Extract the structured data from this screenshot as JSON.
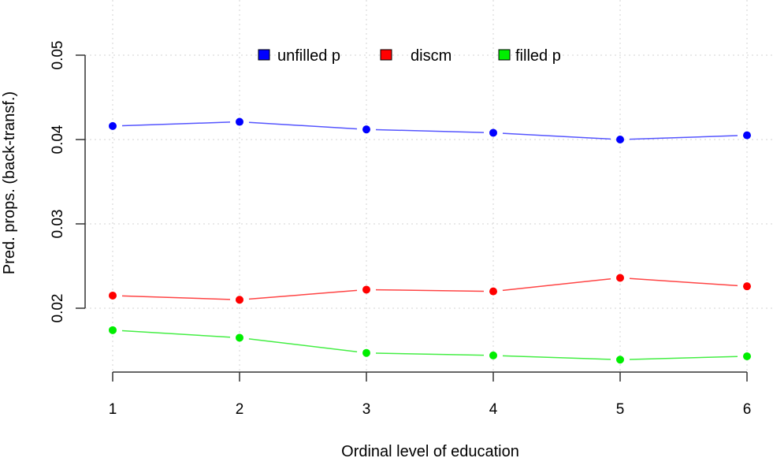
{
  "chart_data": {
    "type": "line",
    "title": "",
    "xlabel": "Ordinal level of education",
    "ylabel": "Pred. props. (back-transf.)",
    "x": [
      1,
      2,
      3,
      4,
      5,
      6
    ],
    "xticks": [
      "1",
      "2",
      "3",
      "4",
      "5",
      "6"
    ],
    "yticks": [
      0.02,
      0.03,
      0.04,
      0.05
    ],
    "ytick_labels": [
      "0.02",
      "0.03",
      "0.04",
      "0.05"
    ],
    "xlim": [
      0.78,
      6.2
    ],
    "ylim": [
      0.0124,
      0.0565
    ],
    "grid": true,
    "legend_position": "top",
    "series": [
      {
        "name": "unfilled p",
        "color": "#0000ff",
        "line_color": "#5555ff",
        "values": [
          0.0416,
          0.0421,
          0.0412,
          0.0408,
          0.04,
          0.0405
        ]
      },
      {
        "name": "discm",
        "color": "#ff0000",
        "line_color": "#ff4444",
        "values": [
          0.0215,
          0.021,
          0.0222,
          0.022,
          0.0236,
          0.0226
        ]
      },
      {
        "name": "filled p",
        "color": "#00ee00",
        "line_color": "#44ee44",
        "values": [
          0.0174,
          0.0165,
          0.0147,
          0.0144,
          0.0139,
          0.0143
        ]
      }
    ]
  }
}
